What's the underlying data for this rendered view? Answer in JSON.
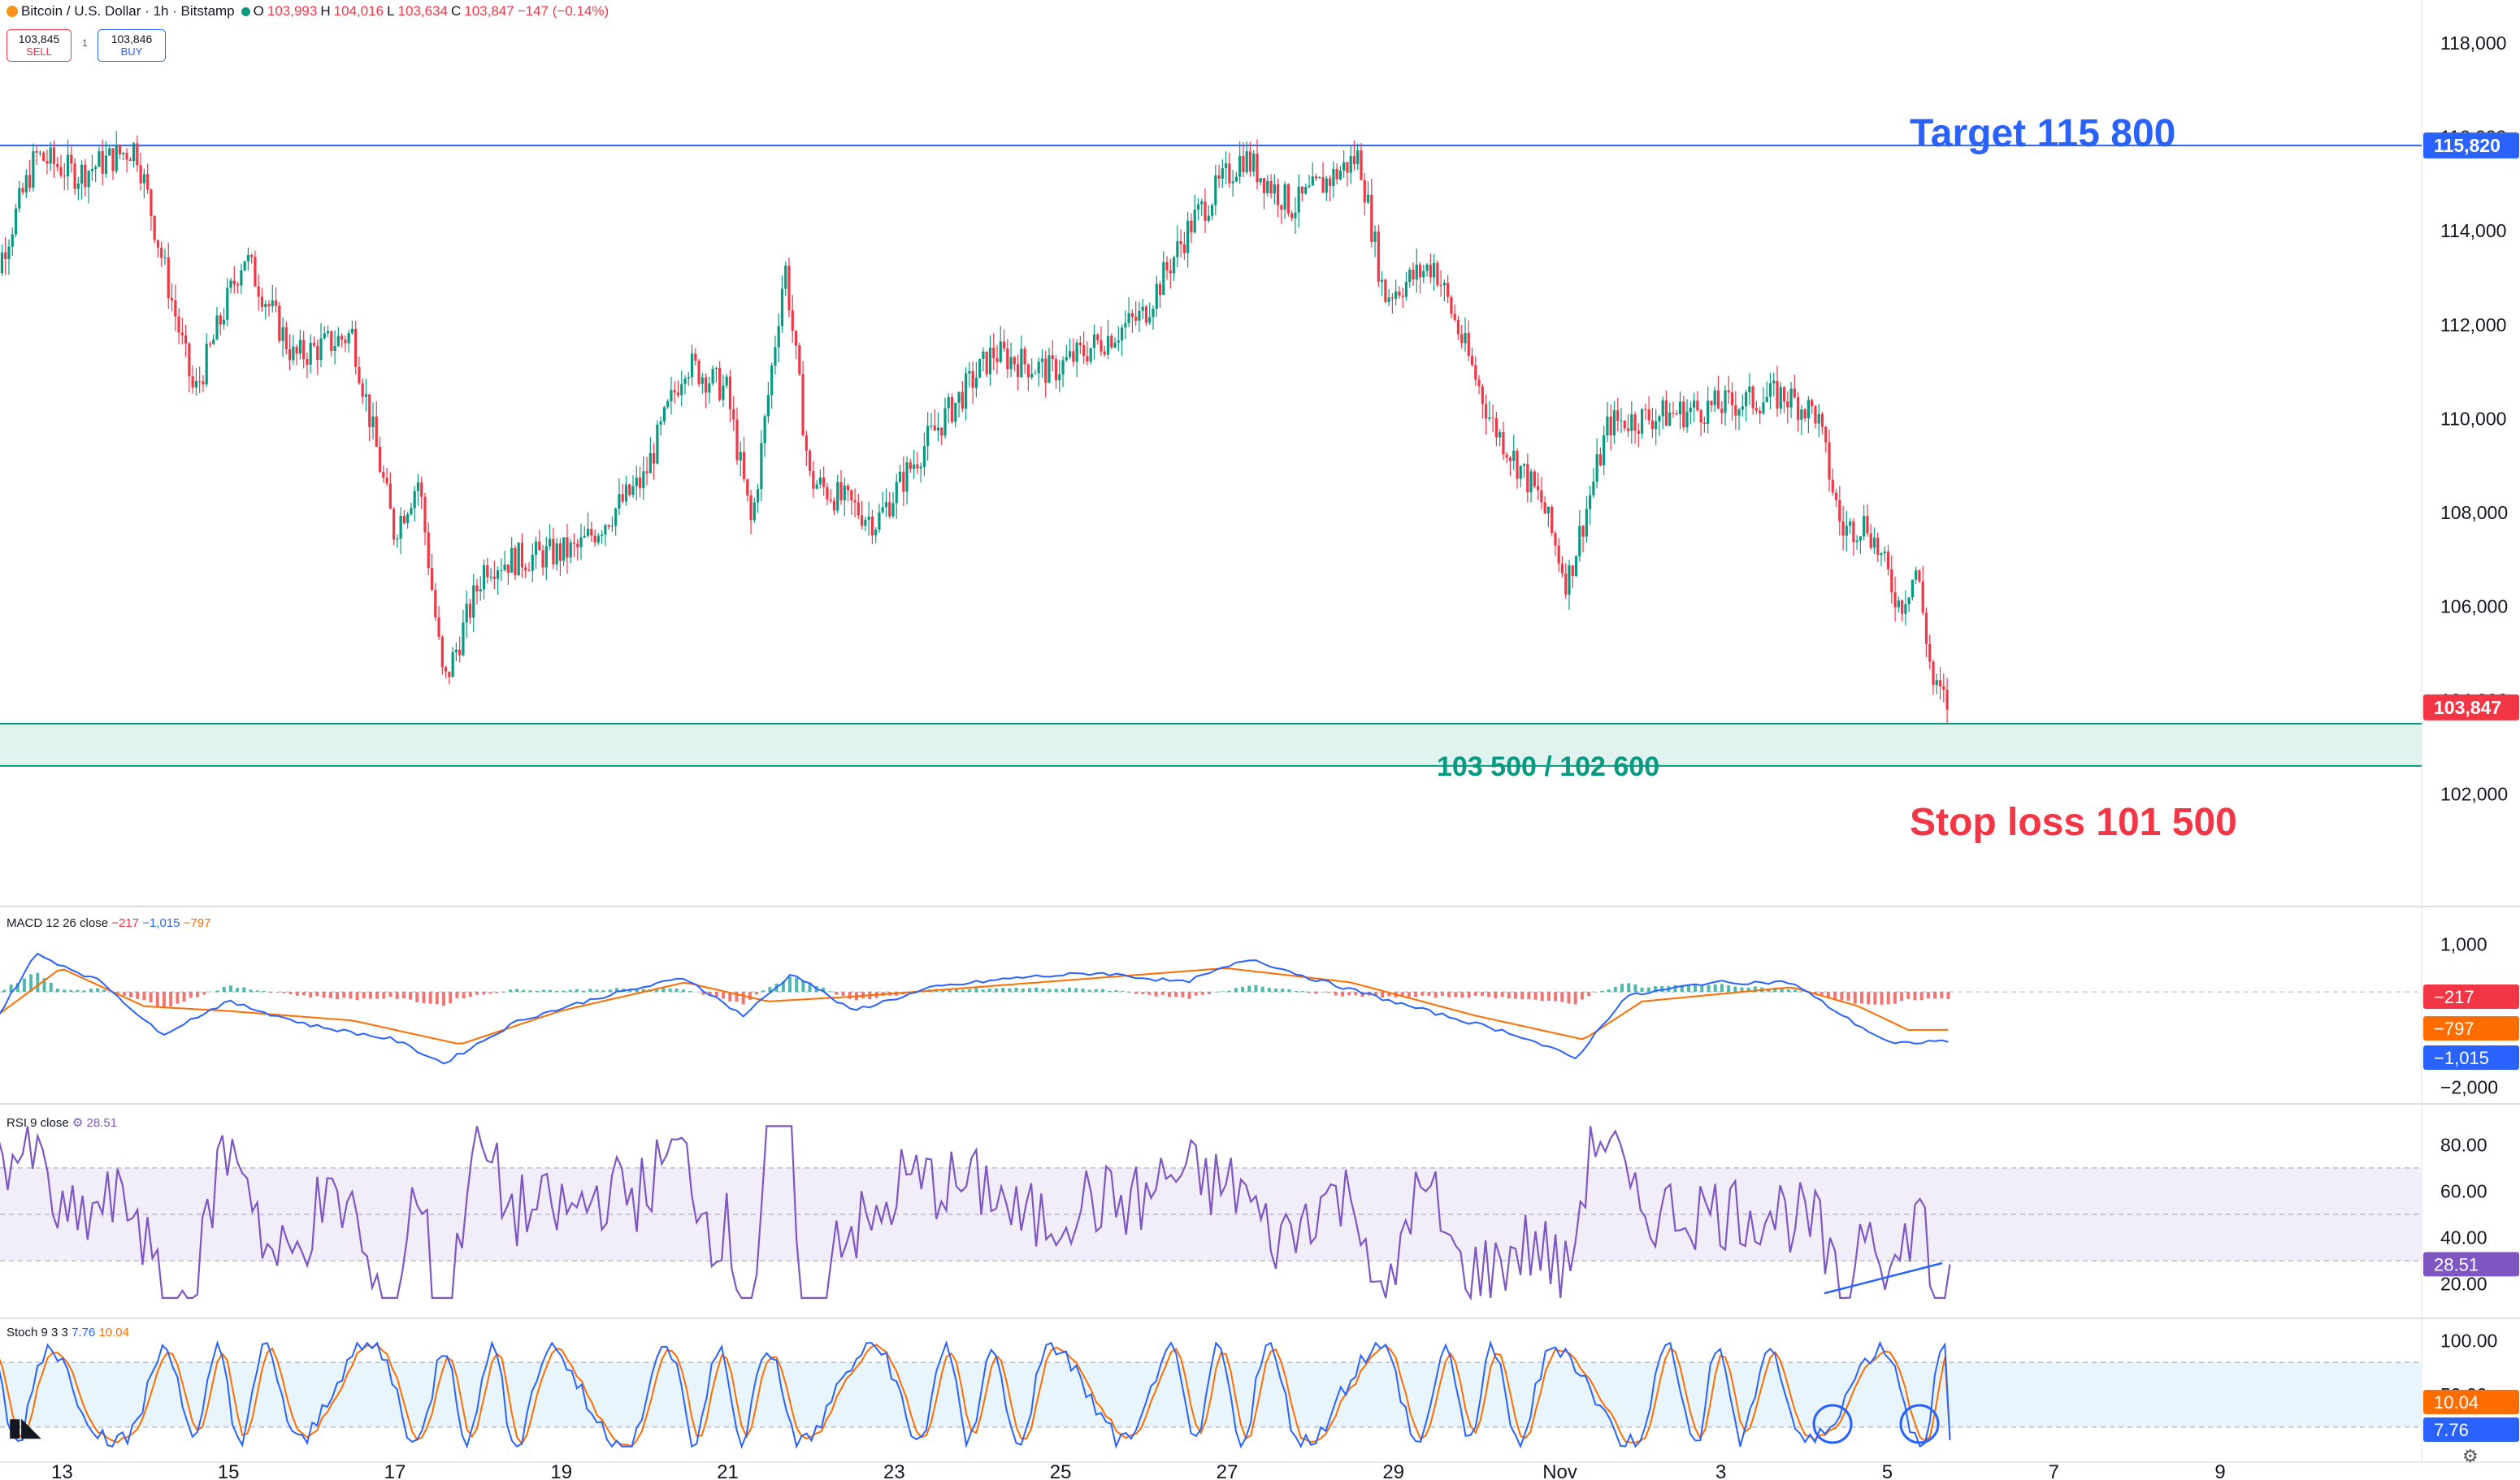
{
  "header": {
    "symbol": "Bitcoin / U.S. Dollar · 1h · Bitstamp",
    "open_label": "O",
    "open": "103,993",
    "high_label": "H",
    "high": "104,016",
    "low_label": "L",
    "low": "103,634",
    "close_label": "C",
    "close": "103,847",
    "change": "−147 (−0.14%)",
    "sell_price": "103,845",
    "sell_label": "SELL",
    "spread": "1",
    "buy_price": "103,846",
    "buy_label": "BUY"
  },
  "colors": {
    "up": "#089981",
    "down": "#f23645",
    "target": "#2962ff",
    "zone_fill": "#e0f3ef",
    "zone_line": "#089981",
    "macd": "#2962ff",
    "signal": "#ff6d00",
    "rsi": "#7e57c2",
    "stoch_k": "#2962ff",
    "stoch_d": "#ff6d00"
  },
  "annotations": {
    "target_text": "Target 115 800",
    "target_price_tag": "115,820",
    "zone_text": "103 500 / 102 600",
    "stoploss_text": "Stop loss 101 500",
    "last_price_tag": "103,847"
  },
  "indicators": {
    "macd_label": "MACD 12 26 close",
    "macd_hist": "−217",
    "macd_line": "−1,015",
    "macd_signal": "−797",
    "rsi_label": "RSI 9 close",
    "rsi_value": "28.51",
    "stoch_label": "Stoch 9 3 3",
    "stoch_k": "7.76",
    "stoch_d": "10.04"
  },
  "chart_data": {
    "type": "candlestick",
    "title": "Bitcoin / U.S. Dollar · 1h · Bitstamp",
    "x_ticks": [
      "13",
      "15",
      "17",
      "19",
      "21",
      "23",
      "25",
      "27",
      "29",
      "Nov",
      "3",
      "5",
      "7",
      "9"
    ],
    "y_ticks": [
      "118,000",
      "116,000",
      "114,000",
      "112,000",
      "110,000",
      "108,000",
      "106,000",
      "104,000",
      "102,000"
    ],
    "y_range": [
      100400,
      118400
    ],
    "price_path": [
      {
        "day": 12.0,
        "price": 112000
      },
      {
        "day": 12.7,
        "price": 115600
      },
      {
        "day": 13.2,
        "price": 115200
      },
      {
        "day": 13.9,
        "price": 115800
      },
      {
        "day": 14.6,
        "price": 110500
      },
      {
        "day": 15.2,
        "price": 113500
      },
      {
        "day": 15.8,
        "price": 111300
      },
      {
        "day": 16.5,
        "price": 111800
      },
      {
        "day": 17.0,
        "price": 107600
      },
      {
        "day": 17.3,
        "price": 108700
      },
      {
        "day": 17.6,
        "price": 104300
      },
      {
        "day": 18.1,
        "price": 106900
      },
      {
        "day": 19.2,
        "price": 107200
      },
      {
        "day": 20.0,
        "price": 108700
      },
      {
        "day": 20.5,
        "price": 111200
      },
      {
        "day": 21.0,
        "price": 110600
      },
      {
        "day": 21.3,
        "price": 107700
      },
      {
        "day": 21.7,
        "price": 113300
      },
      {
        "day": 22.0,
        "price": 108700
      },
      {
        "day": 22.8,
        "price": 107800
      },
      {
        "day": 23.4,
        "price": 109500
      },
      {
        "day": 24.2,
        "price": 111400
      },
      {
        "day": 24.9,
        "price": 111000
      },
      {
        "day": 26.0,
        "price": 112200
      },
      {
        "day": 26.6,
        "price": 114200
      },
      {
        "day": 27.2,
        "price": 115600
      },
      {
        "day": 27.8,
        "price": 114500
      },
      {
        "day": 28.6,
        "price": 115600
      },
      {
        "day": 28.9,
        "price": 112600
      },
      {
        "day": 29.5,
        "price": 113300
      },
      {
        "day": 30.2,
        "price": 109900
      },
      {
        "day": 30.8,
        "price": 108200
      },
      {
        "day": 31.1,
        "price": 106500
      },
      {
        "day": 31.6,
        "price": 109900
      },
      {
        "day": 32.7,
        "price": 110200
      },
      {
        "day": 33.7,
        "price": 110500
      },
      {
        "day": 34.1,
        "price": 110100
      },
      {
        "day": 34.4,
        "price": 107600
      },
      {
        "day": 34.7,
        "price": 107800
      },
      {
        "day": 35.1,
        "price": 106000
      },
      {
        "day": 35.3,
        "price": 106800
      },
      {
        "day": 35.5,
        "price": 104300
      },
      {
        "day": 35.7,
        "price": 103847
      }
    ],
    "levels": {
      "target": 115820,
      "zone_top": 103500,
      "zone_bottom": 102600,
      "stop_loss": 101500,
      "last": 103847
    },
    "macd": {
      "y_ticks": [
        "1,000",
        "0",
        "−2,000"
      ],
      "y_range": [
        -2200,
        1300
      ],
      "line_path": [
        {
          "day": 12.0,
          "v": -1200
        },
        {
          "day": 12.7,
          "v": 800
        },
        {
          "day": 13.5,
          "v": 200
        },
        {
          "day": 14.2,
          "v": -900
        },
        {
          "day": 15.0,
          "v": -200
        },
        {
          "day": 16.0,
          "v": -700
        },
        {
          "day": 17.0,
          "v": -1000
        },
        {
          "day": 17.6,
          "v": -1500
        },
        {
          "day": 18.5,
          "v": -600
        },
        {
          "day": 19.5,
          "v": -100
        },
        {
          "day": 20.5,
          "v": 300
        },
        {
          "day": 21.2,
          "v": -500
        },
        {
          "day": 21.8,
          "v": 400
        },
        {
          "day": 22.5,
          "v": -400
        },
        {
          "day": 23.5,
          "v": 100
        },
        {
          "day": 24.5,
          "v": 300
        },
        {
          "day": 25.5,
          "v": 400
        },
        {
          "day": 26.5,
          "v": 200
        },
        {
          "day": 27.3,
          "v": 700
        },
        {
          "day": 28.0,
          "v": 300
        },
        {
          "day": 29.2,
          "v": -300
        },
        {
          "day": 30.5,
          "v": -900
        },
        {
          "day": 31.2,
          "v": -1400
        },
        {
          "day": 31.8,
          "v": -100
        },
        {
          "day": 32.8,
          "v": 200
        },
        {
          "day": 33.8,
          "v": 200
        },
        {
          "day": 34.5,
          "v": -600
        },
        {
          "day": 35.0,
          "v": -1100
        },
        {
          "day": 35.7,
          "v": -1015
        }
      ],
      "signal_path": [
        {
          "day": 12.0,
          "v": -800
        },
        {
          "day": 13.0,
          "v": 500
        },
        {
          "day": 14.0,
          "v": -300
        },
        {
          "day": 15.0,
          "v": -400
        },
        {
          "day": 16.5,
          "v": -600
        },
        {
          "day": 17.8,
          "v": -1100
        },
        {
          "day": 19.0,
          "v": -400
        },
        {
          "day": 20.5,
          "v": 200
        },
        {
          "day": 21.5,
          "v": -200
        },
        {
          "day": 22.5,
          "v": -100
        },
        {
          "day": 24.0,
          "v": 100
        },
        {
          "day": 25.5,
          "v": 300
        },
        {
          "day": 27.0,
          "v": 500
        },
        {
          "day": 28.5,
          "v": 200
        },
        {
          "day": 30.0,
          "v": -500
        },
        {
          "day": 31.3,
          "v": -1000
        },
        {
          "day": 32.0,
          "v": -200
        },
        {
          "day": 33.8,
          "v": 100
        },
        {
          "day": 34.6,
          "v": -300
        },
        {
          "day": 35.2,
          "v": -800
        },
        {
          "day": 35.7,
          "v": -797
        }
      ]
    },
    "rsi": {
      "y_ticks": [
        "80.00",
        "60.00",
        "40.00",
        "20.00"
      ],
      "y_range": [
        8,
        92
      ],
      "bands": [
        30,
        50,
        70
      ],
      "last": 28.51
    },
    "stoch": {
      "y_ticks": [
        "100.00",
        "50.00"
      ],
      "y_range": [
        -5,
        108
      ],
      "bands": [
        20,
        80
      ],
      "k_last": 7.76,
      "d_last": 10.04
    }
  }
}
